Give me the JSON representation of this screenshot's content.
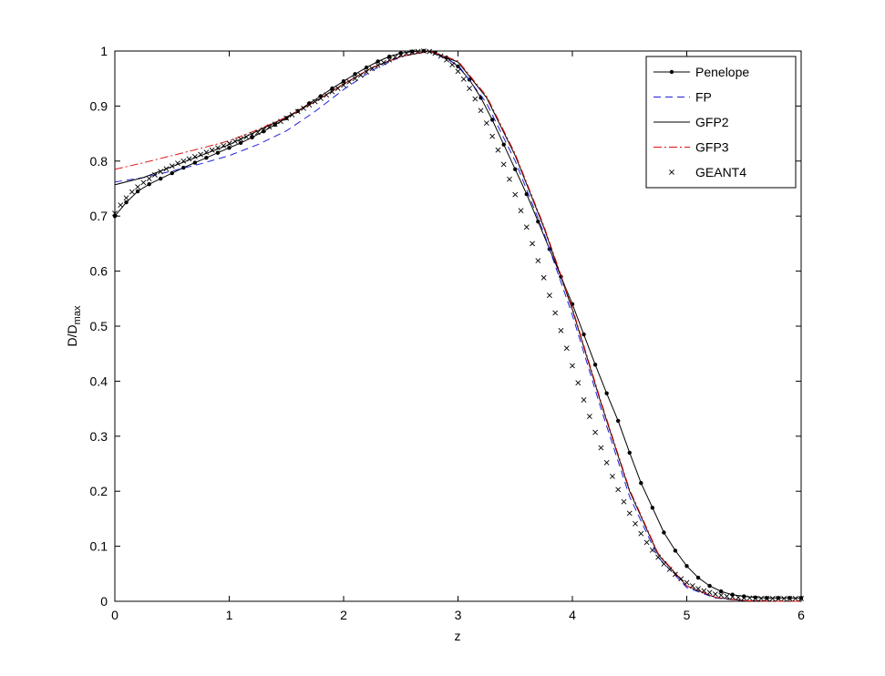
{
  "chart_data": {
    "type": "line",
    "xlabel": "z",
    "ylabel": {
      "base": "D/D",
      "sub": "max"
    },
    "xlim": [
      0,
      6
    ],
    "ylim": [
      0,
      1
    ],
    "xticks": [
      0,
      1,
      2,
      3,
      4,
      5,
      6
    ],
    "yticks": [
      0,
      0.1,
      0.2,
      0.3,
      0.4,
      0.5,
      0.6,
      0.7,
      0.8,
      0.9,
      1
    ],
    "xtick_labels": [
      "0",
      "1",
      "2",
      "3",
      "4",
      "5",
      "6"
    ],
    "ytick_labels": [
      "0",
      "0.1",
      "0.2",
      "0.3",
      "0.4",
      "0.5",
      "0.6",
      "0.7",
      "0.8",
      "0.9",
      "1"
    ],
    "grid": false,
    "legend_position": "top-right",
    "series": [
      {
        "name": "Penelope",
        "color": "#000000",
        "style": "solid-dot",
        "x": [
          0,
          0.1,
          0.2,
          0.3,
          0.4,
          0.5,
          0.6,
          0.7,
          0.8,
          0.9,
          1.0,
          1.1,
          1.2,
          1.3,
          1.4,
          1.5,
          1.6,
          1.7,
          1.8,
          1.9,
          2.0,
          2.1,
          2.2,
          2.3,
          2.4,
          2.5,
          2.6,
          2.7,
          2.8,
          2.9,
          3.0,
          3.1,
          3.2,
          3.3,
          3.4,
          3.5,
          3.6,
          3.7,
          3.8,
          3.9,
          4.0,
          4.1,
          4.2,
          4.3,
          4.4,
          4.5,
          4.6,
          4.7,
          4.8,
          4.9,
          5.0,
          5.1,
          5.2,
          5.3,
          5.4,
          5.5,
          5.6,
          5.7,
          5.8,
          5.9,
          6.0
        ],
        "y": [
          0.7,
          0.725,
          0.745,
          0.758,
          0.768,
          0.778,
          0.788,
          0.797,
          0.806,
          0.815,
          0.824,
          0.833,
          0.843,
          0.854,
          0.866,
          0.878,
          0.891,
          0.905,
          0.918,
          0.932,
          0.945,
          0.958,
          0.97,
          0.981,
          0.99,
          0.996,
          0.999,
          1.0,
          0.997,
          0.988,
          0.972,
          0.948,
          0.915,
          0.875,
          0.83,
          0.785,
          0.74,
          0.69,
          0.64,
          0.59,
          0.54,
          0.485,
          0.43,
          0.378,
          0.328,
          0.27,
          0.215,
          0.17,
          0.125,
          0.092,
          0.064,
          0.043,
          0.028,
          0.018,
          0.012,
          0.009,
          0.007,
          0.006,
          0.006,
          0.006,
          0.006
        ]
      },
      {
        "name": "FP",
        "color": "#1f1fd8",
        "style": "dashed",
        "x": [
          0,
          0.25,
          0.5,
          0.75,
          1.0,
          1.25,
          1.5,
          1.75,
          2.0,
          2.25,
          2.5,
          2.75,
          3.0,
          3.25,
          3.5,
          3.75,
          4.0,
          4.25,
          4.5,
          4.75,
          5.0,
          5.25,
          5.5,
          5.75,
          6.0
        ],
        "y": [
          0.762,
          0.77,
          0.782,
          0.795,
          0.81,
          0.83,
          0.855,
          0.89,
          0.93,
          0.965,
          0.99,
          1.0,
          0.975,
          0.905,
          0.8,
          0.67,
          0.52,
          0.35,
          0.19,
          0.08,
          0.025,
          0.006,
          0.001,
          0.0,
          0.0
        ]
      },
      {
        "name": "GFP2",
        "color": "#000000",
        "style": "solid",
        "x": [
          0,
          0.25,
          0.5,
          0.75,
          1.0,
          1.25,
          1.5,
          1.75,
          2.0,
          2.25,
          2.5,
          2.75,
          3.0,
          3.25,
          3.5,
          3.75,
          4.0,
          4.25,
          4.5,
          4.75,
          5.0,
          5.25,
          5.5,
          5.75,
          6.0
        ],
        "y": [
          0.757,
          0.77,
          0.79,
          0.81,
          0.83,
          0.855,
          0.88,
          0.908,
          0.94,
          0.97,
          0.99,
          1.0,
          0.98,
          0.915,
          0.81,
          0.68,
          0.53,
          0.36,
          0.2,
          0.085,
          0.028,
          0.007,
          0.001,
          0.0,
          0.0
        ]
      },
      {
        "name": "GFP3",
        "color": "#e01010",
        "style": "dashdot",
        "x": [
          0,
          0.25,
          0.5,
          0.75,
          1.0,
          1.25,
          1.5,
          1.75,
          2.0,
          2.25,
          2.5,
          2.75,
          3.0,
          3.25,
          3.5,
          3.75,
          4.0,
          4.25,
          4.5,
          4.75,
          5.0,
          5.25,
          5.5,
          5.75,
          6.0
        ],
        "y": [
          0.785,
          0.797,
          0.81,
          0.823,
          0.837,
          0.857,
          0.88,
          0.908,
          0.94,
          0.97,
          0.99,
          1.0,
          0.982,
          0.918,
          0.813,
          0.683,
          0.533,
          0.363,
          0.203,
          0.087,
          0.028,
          0.007,
          0.001,
          0.0,
          0.0
        ]
      },
      {
        "name": "GEANT4",
        "color": "#000000",
        "style": "x",
        "x": [
          0,
          0.05,
          0.1,
          0.15,
          0.2,
          0.25,
          0.3,
          0.35,
          0.4,
          0.45,
          0.5,
          0.55,
          0.6,
          0.65,
          0.7,
          0.75,
          0.8,
          0.85,
          0.9,
          0.95,
          1.0,
          1.05,
          1.1,
          1.15,
          1.2,
          1.25,
          1.3,
          1.35,
          1.4,
          1.45,
          1.5,
          1.55,
          1.6,
          1.65,
          1.7,
          1.75,
          1.8,
          1.85,
          1.9,
          1.95,
          2.0,
          2.05,
          2.1,
          2.15,
          2.2,
          2.25,
          2.3,
          2.35,
          2.4,
          2.45,
          2.5,
          2.55,
          2.6,
          2.65,
          2.7,
          2.75,
          2.8,
          2.85,
          2.9,
          2.95,
          3.0,
          3.05,
          3.1,
          3.15,
          3.2,
          3.25,
          3.3,
          3.35,
          3.4,
          3.45,
          3.5,
          3.55,
          3.6,
          3.65,
          3.7,
          3.75,
          3.8,
          3.85,
          3.9,
          3.95,
          4.0,
          4.05,
          4.1,
          4.15,
          4.2,
          4.25,
          4.3,
          4.35,
          4.4,
          4.45,
          4.5,
          4.55,
          4.6,
          4.65,
          4.7,
          4.75,
          4.8,
          4.85,
          4.9,
          4.95,
          5.0,
          5.05,
          5.1,
          5.15,
          5.2,
          5.25,
          5.3,
          5.35,
          5.4,
          5.45,
          5.5,
          5.55,
          5.6,
          5.65,
          5.7,
          5.75,
          5.8,
          5.85,
          5.9,
          5.95,
          6.0
        ],
        "y": [
          0.705,
          0.72,
          0.733,
          0.744,
          0.753,
          0.761,
          0.768,
          0.775,
          0.781,
          0.786,
          0.791,
          0.796,
          0.8,
          0.804,
          0.808,
          0.812,
          0.816,
          0.82,
          0.824,
          0.828,
          0.832,
          0.836,
          0.84,
          0.844,
          0.848,
          0.852,
          0.857,
          0.862,
          0.867,
          0.872,
          0.878,
          0.884,
          0.89,
          0.896,
          0.902,
          0.908,
          0.914,
          0.92,
          0.926,
          0.932,
          0.938,
          0.944,
          0.95,
          0.956,
          0.962,
          0.968,
          0.974,
          0.979,
          0.984,
          0.989,
          0.993,
          0.996,
          0.998,
          0.999,
          1.0,
          0.999,
          0.996,
          0.991,
          0.984,
          0.975,
          0.963,
          0.949,
          0.932,
          0.913,
          0.892,
          0.869,
          0.845,
          0.82,
          0.794,
          0.767,
          0.739,
          0.71,
          0.68,
          0.65,
          0.619,
          0.588,
          0.556,
          0.524,
          0.492,
          0.46,
          0.428,
          0.397,
          0.366,
          0.336,
          0.307,
          0.279,
          0.252,
          0.227,
          0.203,
          0.181,
          0.16,
          0.141,
          0.123,
          0.107,
          0.093,
          0.08,
          0.068,
          0.058,
          0.049,
          0.041,
          0.034,
          0.028,
          0.023,
          0.019,
          0.016,
          0.013,
          0.011,
          0.009,
          0.008,
          0.007,
          0.006,
          0.006,
          0.005,
          0.005,
          0.005,
          0.005,
          0.005,
          0.005,
          0.005,
          0.005,
          0.005
        ]
      }
    ]
  }
}
